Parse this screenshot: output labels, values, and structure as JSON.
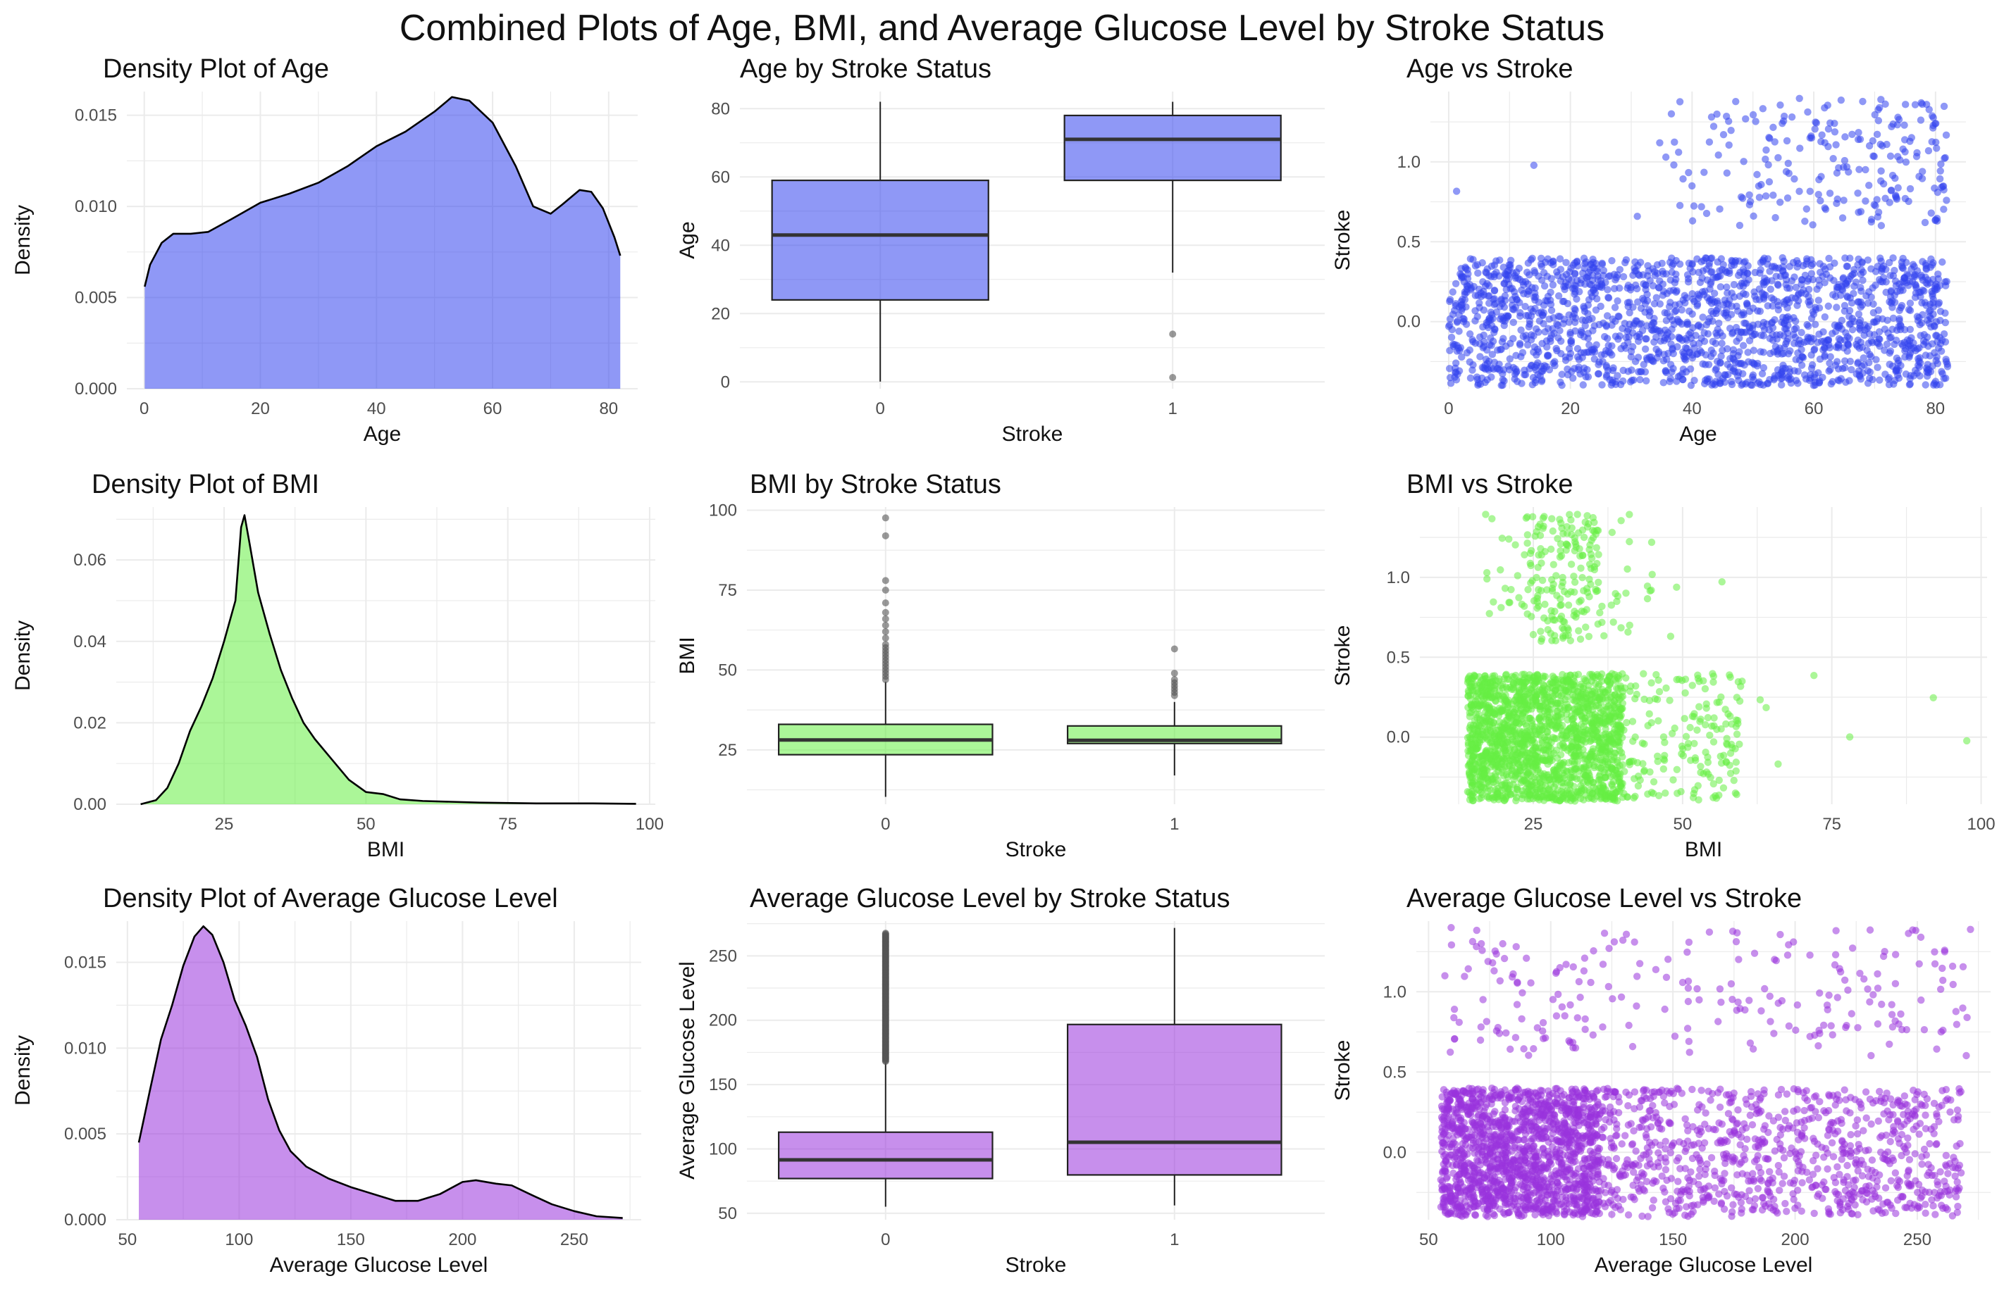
{
  "title": "Combined Plots of Age, BMI, and Average Glucose Level by Stroke Status",
  "colors": {
    "age": "#3344ee",
    "bmi": "#66ee44",
    "glucose": "#9933dd",
    "grid": "#ebebeb",
    "outline": "#222222",
    "outlier": "#555555"
  },
  "chart_data": [
    {
      "type": "area",
      "name": "density-age",
      "title": "Density Plot of Age",
      "xlabel": "Age",
      "ylabel": "Density",
      "xlim": [
        -3,
        85
      ],
      "ylim": [
        0,
        0.0163
      ],
      "xticks": [
        0,
        20,
        40,
        60,
        80
      ],
      "yticks": [
        0,
        0.005,
        0.01,
        0.015
      ],
      "ytick_labels": [
        "0.000",
        "0.005",
        "0.010",
        "0.015"
      ],
      "color_key": "age",
      "points": [
        [
          0.08,
          0.0056
        ],
        [
          1,
          0.0068
        ],
        [
          3,
          0.008
        ],
        [
          5,
          0.0085
        ],
        [
          8,
          0.0085
        ],
        [
          11,
          0.0086
        ],
        [
          15,
          0.0093
        ],
        [
          20,
          0.0102
        ],
        [
          25,
          0.0107
        ],
        [
          30,
          0.0113
        ],
        [
          35,
          0.0122
        ],
        [
          40,
          0.0133
        ],
        [
          45,
          0.0141
        ],
        [
          50,
          0.0152
        ],
        [
          53,
          0.016
        ],
        [
          56,
          0.0158
        ],
        [
          60,
          0.0146
        ],
        [
          64,
          0.0122
        ],
        [
          67,
          0.01
        ],
        [
          70,
          0.0096
        ],
        [
          72,
          0.0101
        ],
        [
          75,
          0.0109
        ],
        [
          77,
          0.0108
        ],
        [
          79,
          0.0099
        ],
        [
          81,
          0.0083
        ],
        [
          82,
          0.0073
        ]
      ]
    },
    {
      "type": "box",
      "name": "box-age",
      "title": "Age by Stroke Status",
      "xlabel": "Stroke",
      "ylabel": "Age",
      "ylim": [
        -2,
        85
      ],
      "yticks": [
        0,
        20,
        40,
        60,
        80
      ],
      "ytick_labels": [
        "0",
        "20",
        "40",
        "60",
        "80"
      ],
      "categories": [
        "0",
        "1"
      ],
      "color_key": "age",
      "boxes": [
        {
          "min": 0.08,
          "q1": 24,
          "median": 43,
          "q3": 59,
          "max": 82,
          "outliers": []
        },
        {
          "min": 32,
          "q1": 59,
          "median": 71,
          "q3": 78,
          "max": 82,
          "outliers": [
            14,
            1.3
          ]
        }
      ]
    },
    {
      "type": "scatter",
      "name": "scatter-age",
      "title": "Age vs Stroke",
      "xlabel": "Age",
      "ylabel": "Stroke",
      "xlim": [
        -3,
        85
      ],
      "ylim": [
        -0.42,
        1.44
      ],
      "xticks": [
        0,
        20,
        40,
        60,
        80
      ],
      "yticks": [
        0,
        0.5,
        1.0
      ],
      "ytick_labels": [
        "0.0",
        "0.5",
        "1.0"
      ],
      "color_key": "age",
      "jitter": 0.4,
      "groups": [
        {
          "stroke": 0,
          "count": 1800,
          "x_range": [
            0,
            82
          ],
          "x_weights": "uniform"
        },
        {
          "stroke": 1,
          "count": 220,
          "x_range": [
            32,
            82
          ],
          "x_extra": [
            1.3,
            14,
            31,
            38,
            38,
            46
          ]
        }
      ]
    },
    {
      "type": "area",
      "name": "density-bmi",
      "title": "Density Plot of BMI",
      "xlabel": "BMI",
      "ylabel": "Density",
      "xlim": [
        6,
        101
      ],
      "ylim": [
        0,
        0.073
      ],
      "xticks": [
        25,
        50,
        75,
        100
      ],
      "yticks": [
        0,
        0.02,
        0.04,
        0.06
      ],
      "ytick_labels": [
        "0.00",
        "0.02",
        "0.04",
        "0.06"
      ],
      "color_key": "bmi",
      "points": [
        [
          10.3,
          0.0
        ],
        [
          13,
          0.001
        ],
        [
          15,
          0.004
        ],
        [
          17,
          0.01
        ],
        [
          19,
          0.018
        ],
        [
          21,
          0.024
        ],
        [
          23,
          0.031
        ],
        [
          25,
          0.04
        ],
        [
          27,
          0.05
        ],
        [
          28,
          0.068
        ],
        [
          28.6,
          0.071
        ],
        [
          29.5,
          0.064
        ],
        [
          31,
          0.052
        ],
        [
          33,
          0.042
        ],
        [
          35,
          0.033
        ],
        [
          37,
          0.026
        ],
        [
          39,
          0.02
        ],
        [
          41,
          0.016
        ],
        [
          44,
          0.011
        ],
        [
          47,
          0.006
        ],
        [
          50,
          0.003
        ],
        [
          53,
          0.0025
        ],
        [
          56,
          0.0012
        ],
        [
          60,
          0.0008
        ],
        [
          70,
          0.0004
        ],
        [
          80,
          0.0002
        ],
        [
          90,
          0.0002
        ],
        [
          97.6,
          0.0001
        ]
      ]
    },
    {
      "type": "box",
      "name": "box-bmi",
      "title": "BMI by Stroke Status",
      "xlabel": "Stroke",
      "ylabel": "BMI",
      "ylim": [
        8,
        101
      ],
      "yticks": [
        25,
        50,
        75,
        100
      ],
      "ytick_labels": [
        "25",
        "50",
        "75",
        "100"
      ],
      "categories": [
        "0",
        "1"
      ],
      "color_key": "bmi",
      "boxes": [
        {
          "min": 10.3,
          "q1": 23.5,
          "median": 28.1,
          "q3": 33,
          "max": 46.3,
          "outliers": [
            47,
            48,
            49,
            50,
            51,
            52,
            53,
            54,
            55,
            56,
            57,
            58,
            60,
            62,
            64,
            66,
            68,
            71,
            75,
            78,
            92,
            97.6
          ]
        },
        {
          "min": 17,
          "q1": 27,
          "median": 28,
          "q3": 32.5,
          "max": 40,
          "outliers": [
            42,
            43,
            44,
            45,
            46,
            47,
            49,
            56.6
          ]
        }
      ]
    },
    {
      "type": "scatter",
      "name": "scatter-bmi",
      "title": "BMI vs Stroke",
      "xlabel": "BMI",
      "ylabel": "Stroke",
      "xlim": [
        6,
        101
      ],
      "ylim": [
        -0.42,
        1.44
      ],
      "xticks": [
        25,
        50,
        75,
        100
      ],
      "yticks": [
        0,
        0.5,
        1.0
      ],
      "ytick_labels": [
        "0.0",
        "0.5",
        "1.0"
      ],
      "color_key": "bmi",
      "jitter": 0.4,
      "groups": [
        {
          "stroke": 0,
          "count": 1900,
          "x_range": [
            12,
            60
          ],
          "x_extra": [
            63,
            64,
            66,
            72,
            78,
            92,
            97.6
          ]
        },
        {
          "stroke": 1,
          "count": 220,
          "x_range": [
            17,
            46
          ],
          "x_extra": [
            48,
            49,
            56.6
          ]
        }
      ]
    },
    {
      "type": "area",
      "name": "density-glucose",
      "title": "Density Plot of Average Glucose Level",
      "xlabel": "Average Glucose Level",
      "ylabel": "Density",
      "xlim": [
        45,
        280
      ],
      "ylim": [
        0,
        0.0174
      ],
      "xticks": [
        50,
        100,
        150,
        200,
        250
      ],
      "yticks": [
        0,
        0.005,
        0.01,
        0.015
      ],
      "ytick_labels": [
        "0.000",
        "0.005",
        "0.010",
        "0.015"
      ],
      "color_key": "glucose",
      "points": [
        [
          55.1,
          0.0045
        ],
        [
          60,
          0.0075
        ],
        [
          65,
          0.0105
        ],
        [
          70,
          0.0125
        ],
        [
          75,
          0.0148
        ],
        [
          80,
          0.0165
        ],
        [
          84,
          0.0171
        ],
        [
          88,
          0.0166
        ],
        [
          93,
          0.015
        ],
        [
          98,
          0.0128
        ],
        [
          103,
          0.0113
        ],
        [
          108,
          0.0095
        ],
        [
          113,
          0.007
        ],
        [
          118,
          0.0052
        ],
        [
          123,
          0.004
        ],
        [
          130,
          0.0031
        ],
        [
          140,
          0.0024
        ],
        [
          150,
          0.0019
        ],
        [
          160,
          0.0015
        ],
        [
          170,
          0.0011
        ],
        [
          180,
          0.0011
        ],
        [
          190,
          0.0015
        ],
        [
          200,
          0.0022
        ],
        [
          206,
          0.0023
        ],
        [
          215,
          0.0021
        ],
        [
          222,
          0.002
        ],
        [
          230,
          0.0015
        ],
        [
          240,
          0.0009
        ],
        [
          250,
          0.0005
        ],
        [
          260,
          0.0002
        ],
        [
          271.7,
          0.0001
        ]
      ]
    },
    {
      "type": "box",
      "name": "box-glucose",
      "title": "Average Glucose Level by Stroke Status",
      "xlabel": "Stroke",
      "ylabel": "Average Glucose Level",
      "ylim": [
        45,
        277
      ],
      "yticks": [
        50,
        100,
        150,
        200,
        250
      ],
      "ytick_labels": [
        "50",
        "100",
        "150",
        "200",
        "250"
      ],
      "categories": [
        "0",
        "1"
      ],
      "color_key": "glucose",
      "boxes": [
        {
          "min": 55.1,
          "q1": 77,
          "median": 91.5,
          "q3": 113,
          "max": 167,
          "outliers": "dense",
          "outlier_range": [
            168,
            267.8
          ]
        },
        {
          "min": 56.1,
          "q1": 79.8,
          "median": 105.2,
          "q3": 196.7,
          "max": 271.7,
          "outliers": []
        }
      ]
    },
    {
      "type": "scatter",
      "name": "scatter-glucose",
      "title": "Average Glucose Level vs Stroke",
      "xlabel": "Average Glucose Level",
      "ylabel": "Stroke",
      "xlim": [
        45,
        280
      ],
      "ylim": [
        -0.42,
        1.44
      ],
      "xticks": [
        50,
        100,
        150,
        200,
        250
      ],
      "yticks": [
        0,
        0.5,
        1.0
      ],
      "ytick_labels": [
        "0.0",
        "0.5",
        "1.0"
      ],
      "color_key": "glucose",
      "jitter": 0.4,
      "groups": [
        {
          "stroke": 0,
          "count": 2400,
          "x_range": [
            55,
            268
          ],
          "x_weights": "glucose"
        },
        {
          "stroke": 1,
          "count": 220,
          "x_range": [
            56,
            272
          ],
          "x_weights": "glucose-stroke"
        }
      ]
    }
  ]
}
